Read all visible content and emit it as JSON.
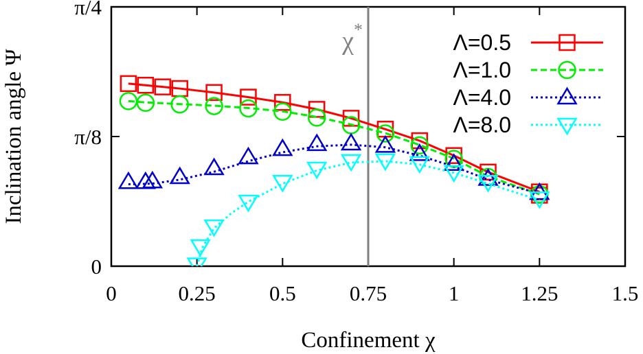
{
  "chart_data": {
    "type": "line",
    "title": "",
    "xlabel": "Confinement χ",
    "ylabel": "Inclination angle Ψ",
    "xlim": [
      0,
      1.5
    ],
    "ylim": [
      0,
      0.785398
    ],
    "xticks": [
      {
        "value": 0,
        "label": "0"
      },
      {
        "value": 0.25,
        "label": "0.25"
      },
      {
        "value": 0.5,
        "label": "0.5"
      },
      {
        "value": 0.75,
        "label": "0.75"
      },
      {
        "value": 1,
        "label": "1"
      },
      {
        "value": 1.25,
        "label": "1.25"
      },
      {
        "value": 1.5,
        "label": "1.5"
      }
    ],
    "yticks": [
      {
        "value": 0,
        "label": "0"
      },
      {
        "value": 0.392699,
        "label": "π/8"
      },
      {
        "value": 0.785398,
        "label": "π/4"
      }
    ],
    "grid": false,
    "legend_position": "top-right",
    "annotation": {
      "label": "χ",
      "superscript": "*",
      "x": 0.75,
      "color": "#808080"
    },
    "series": [
      {
        "name": "Λ=0.5",
        "color": "#ff0000",
        "marker": "square",
        "line_style": "solid",
        "points": [
          [
            0.05,
            0.553
          ],
          [
            0.1,
            0.548
          ],
          [
            0.15,
            0.543
          ],
          [
            0.2,
            0.538
          ],
          [
            0.3,
            0.526
          ],
          [
            0.4,
            0.512
          ],
          [
            0.5,
            0.496
          ],
          [
            0.6,
            0.475
          ],
          [
            0.7,
            0.448
          ],
          [
            0.8,
            0.415
          ],
          [
            0.9,
            0.38
          ],
          [
            1.0,
            0.335
          ],
          [
            1.1,
            0.285
          ],
          [
            1.25,
            0.225
          ],
          [
            1.25,
            0.215
          ]
        ],
        "curve": [
          [
            0.05,
            0.553
          ],
          [
            0.1,
            0.548
          ],
          [
            0.15,
            0.543
          ],
          [
            0.2,
            0.538
          ],
          [
            0.3,
            0.526
          ],
          [
            0.4,
            0.512
          ],
          [
            0.5,
            0.496
          ],
          [
            0.6,
            0.475
          ],
          [
            0.7,
            0.448
          ],
          [
            0.8,
            0.415
          ],
          [
            0.9,
            0.38
          ],
          [
            1.0,
            0.335
          ],
          [
            1.1,
            0.285
          ],
          [
            1.25,
            0.225
          ]
        ]
      },
      {
        "name": "Λ=1.0",
        "color": "#00ee00",
        "marker": "circle",
        "line_style": "dashed",
        "points": [
          [
            0.05,
            0.5
          ],
          [
            0.1,
            0.495
          ],
          [
            0.2,
            0.49
          ],
          [
            0.3,
            0.485
          ],
          [
            0.4,
            0.478
          ],
          [
            0.5,
            0.468
          ],
          [
            0.6,
            0.45
          ],
          [
            0.7,
            0.427
          ],
          [
            0.8,
            0.402
          ],
          [
            0.9,
            0.366
          ],
          [
            1.0,
            0.325
          ],
          [
            1.1,
            0.27
          ],
          [
            1.25,
            0.218
          ]
        ],
        "curve": [
          [
            0.05,
            0.5
          ],
          [
            0.1,
            0.496
          ],
          [
            0.2,
            0.491
          ],
          [
            0.3,
            0.486
          ],
          [
            0.4,
            0.479
          ],
          [
            0.5,
            0.469
          ],
          [
            0.6,
            0.452
          ],
          [
            0.7,
            0.429
          ],
          [
            0.8,
            0.403
          ],
          [
            0.9,
            0.367
          ],
          [
            1.0,
            0.326
          ],
          [
            1.1,
            0.272
          ],
          [
            1.25,
            0.218
          ]
        ]
      },
      {
        "name": "Λ=4.0",
        "color": "#0000cc",
        "marker": "triangle-up",
        "line_style": "dotted",
        "points": [
          [
            0.05,
            0.255
          ],
          [
            0.1,
            0.255
          ],
          [
            0.12,
            0.257
          ],
          [
            0.2,
            0.27
          ],
          [
            0.3,
            0.297
          ],
          [
            0.4,
            0.33
          ],
          [
            0.5,
            0.355
          ],
          [
            0.6,
            0.37
          ],
          [
            0.7,
            0.372
          ],
          [
            0.8,
            0.365
          ],
          [
            0.9,
            0.34
          ],
          [
            1.0,
            0.31
          ],
          [
            1.1,
            0.265
          ],
          [
            1.25,
            0.222
          ]
        ],
        "curve": [
          [
            0.05,
            0.248
          ],
          [
            0.12,
            0.25
          ],
          [
            0.2,
            0.262
          ],
          [
            0.3,
            0.286
          ],
          [
            0.4,
            0.318
          ],
          [
            0.5,
            0.345
          ],
          [
            0.6,
            0.363
          ],
          [
            0.7,
            0.368
          ],
          [
            0.8,
            0.36
          ],
          [
            0.9,
            0.335
          ],
          [
            1.0,
            0.302
          ],
          [
            1.1,
            0.262
          ],
          [
            1.25,
            0.22
          ]
        ]
      },
      {
        "name": "Λ=8.0",
        "color": "#00ffff",
        "marker": "triangle-down",
        "line_style": "dotted",
        "points": [
          [
            0.25,
            0.005
          ],
          [
            0.26,
            0.06
          ],
          [
            0.3,
            0.12
          ],
          [
            0.4,
            0.195
          ],
          [
            0.5,
            0.255
          ],
          [
            0.6,
            0.295
          ],
          [
            0.7,
            0.318
          ],
          [
            0.8,
            0.32
          ],
          [
            0.9,
            0.312
          ],
          [
            1.0,
            0.285
          ],
          [
            1.1,
            0.255
          ],
          [
            1.25,
            0.205
          ]
        ],
        "curve": [
          [
            0.25,
            0.0
          ],
          [
            0.265,
            0.055
          ],
          [
            0.3,
            0.115
          ],
          [
            0.35,
            0.16
          ],
          [
            0.4,
            0.195
          ],
          [
            0.5,
            0.25
          ],
          [
            0.6,
            0.29
          ],
          [
            0.7,
            0.314
          ],
          [
            0.8,
            0.318
          ],
          [
            0.9,
            0.308
          ],
          [
            1.0,
            0.283
          ],
          [
            1.1,
            0.25
          ],
          [
            1.25,
            0.2
          ]
        ]
      }
    ]
  }
}
